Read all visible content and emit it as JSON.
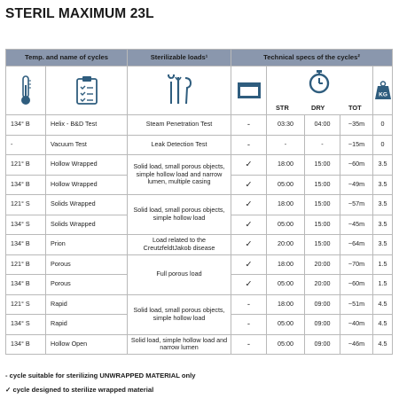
{
  "title": "STERIL MAXIMUM 23L",
  "headers": {
    "temp_name": "Temp. and name of cycles",
    "loads": "Sterilizable loads¹",
    "tech": "Technical specs of the cycles²"
  },
  "subheaders": {
    "str": "STR",
    "dry": "DRY",
    "tot": "TOT",
    "kg": "KG"
  },
  "icons": [
    "thermometer-icon",
    "clipboard-icon",
    "instruments-icon",
    "sterilizer-tray-icon",
    "stopwatch-icon",
    "weight-icon"
  ],
  "rows": [
    {
      "temp": "134° B",
      "name": "Helix - B&D Test",
      "load": "Steam Penetration Test",
      "chk": "-",
      "str": "03:30",
      "dry": "04:00",
      "tot": "~35m",
      "kg": "0"
    },
    {
      "temp": "-",
      "name": "Vacuum Test",
      "load": "Leak Detection Test",
      "chk": "-",
      "str": "-",
      "dry": "-",
      "tot": "~15m",
      "kg": "0"
    },
    {
      "temp": "121° B",
      "name": "Hollow Wrapped",
      "load": "Solid load, small porous objects, simple hollow load and narrow lumen, multiple casing",
      "chk": "✓",
      "str": "18:00",
      "dry": "15:00",
      "tot": "~60m",
      "kg": "3.5"
    },
    {
      "temp": "134° B",
      "name": "Hollow Wrapped",
      "load": "",
      "chk": "✓",
      "str": "05:00",
      "dry": "15:00",
      "tot": "~49m",
      "kg": "3.5"
    },
    {
      "temp": "121° S",
      "name": "Solids Wrapped",
      "load": "Solid load, small porous objects, simple hollow load",
      "chk": "✓",
      "str": "18:00",
      "dry": "15:00",
      "tot": "~57m",
      "kg": "3.5"
    },
    {
      "temp": "134° S",
      "name": "Solids Wrapped",
      "load": "",
      "chk": "✓",
      "str": "05:00",
      "dry": "15:00",
      "tot": "~45m",
      "kg": "3.5"
    },
    {
      "temp": "134° B",
      "name": "Prion",
      "load": "Load related to the CreutzfeldtJakob disease",
      "chk": "✓",
      "str": "20:00",
      "dry": "15:00",
      "tot": "~64m",
      "kg": "3.5"
    },
    {
      "temp": "121° B",
      "name": "Porous",
      "load": "Full porous load",
      "chk": "✓",
      "str": "18:00",
      "dry": "20:00",
      "tot": "~70m",
      "kg": "1.5"
    },
    {
      "temp": "134° B",
      "name": "Porous",
      "load": "",
      "chk": "✓",
      "str": "05:00",
      "dry": "20:00",
      "tot": "~60m",
      "kg": "1.5"
    },
    {
      "temp": "121° S",
      "name": "Rapid",
      "load": "Solid load, small porous objects, simple hollow load",
      "chk": "-",
      "str": "18:00",
      "dry": "09:00",
      "tot": "~51m",
      "kg": "4.5"
    },
    {
      "temp": "134° S",
      "name": "Rapid",
      "load": "",
      "chk": "-",
      "str": "05:00",
      "dry": "09:00",
      "tot": "~40m",
      "kg": "4.5"
    },
    {
      "temp": "134° B",
      "name": "Hollow Open",
      "load": "Solid load, simple hollow load and narrow lumen",
      "chk": "-",
      "str": "05:00",
      "dry": "09:00",
      "tot": "~46m",
      "kg": "4.5"
    }
  ],
  "legend": {
    "dash_symbol": "-",
    "dash_text": "cycle suitable for sterilizing UNWRAPPED MATERIAL only",
    "check_symbol": "✓",
    "check_text": "cycle designed to sterilize wrapped material"
  }
}
